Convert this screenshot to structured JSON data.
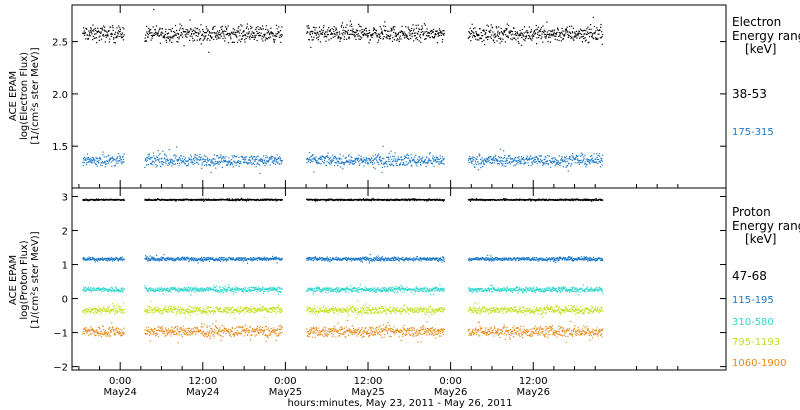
{
  "chart_data": [
    {
      "type": "scatter",
      "panel": "electron",
      "ylabel_lines": [
        "ACE EPAM",
        "log(Electron Flux)",
        "[1/(cm²s ster MeV)]"
      ],
      "ylim": [
        1.1,
        2.85
      ],
      "yticks": [
        1.5,
        2.0,
        2.5
      ],
      "ytick_labels": [
        "1.5",
        "2.0",
        "2.5"
      ],
      "legend": {
        "title_lines": [
          "Electron",
          "Energy ranges",
          "[keV]"
        ],
        "placement": "right"
      },
      "series": [
        {
          "name": "38-53",
          "color": "#000000",
          "base": 2.58,
          "spread": 0.07
        },
        {
          "name": "175-315",
          "color": "#1a78c8",
          "base": 1.37,
          "spread": 0.05
        }
      ]
    },
    {
      "type": "scatter",
      "panel": "proton",
      "ylabel_lines": [
        "ACE EPAM",
        "log(Proton Flux)",
        "[1/(cm²s ster MeV)]"
      ],
      "ylim": [
        -2.1,
        3.25
      ],
      "yticks": [
        -2,
        -1,
        0,
        1,
        2,
        3
      ],
      "ytick_labels": [
        "−2",
        "−1",
        "0",
        "1",
        "2",
        "3"
      ],
      "legend": {
        "title_lines": [
          "Proton",
          "Energy ranges",
          "[keV]"
        ],
        "placement": "right"
      },
      "series": [
        {
          "name": "47-68",
          "color": "#000000",
          "base": 2.92,
          "spread": 0.02
        },
        {
          "name": "115-195",
          "color": "#1a78c8",
          "base": 1.18,
          "spread": 0.05
        },
        {
          "name": "310-580",
          "color": "#2fd6cc",
          "base": 0.28,
          "spread": 0.07
        },
        {
          "name": "795-1193",
          "color": "#c4e021",
          "base": -0.32,
          "spread": 0.1
        },
        {
          "name": "1060-1900",
          "color": "#e88a1a",
          "base": -0.95,
          "spread": 0.15
        }
      ]
    }
  ],
  "x_axis": {
    "xlabel": "hours:minutes, May 23, 2011 - May 26, 2011",
    "xlim_hours": [
      -7,
      88
    ],
    "major_ticks": [
      {
        "hour": 0,
        "time": "0:00",
        "date": "May24"
      },
      {
        "hour": 12,
        "time": "12:00",
        "date": "May24"
      },
      {
        "hour": 24,
        "time": "0:00",
        "date": "May25"
      },
      {
        "hour": 36,
        "time": "12:00",
        "date": "May25"
      },
      {
        "hour": 48,
        "time": "0:00",
        "date": "May26"
      },
      {
        "hour": 60,
        "time": "12:00",
        "date": "May26"
      }
    ],
    "data_segments_hours": [
      [
        -5.5,
        0.5
      ],
      [
        3.5,
        23.5
      ],
      [
        27.0,
        47.0
      ],
      [
        50.5,
        70.0
      ]
    ]
  }
}
